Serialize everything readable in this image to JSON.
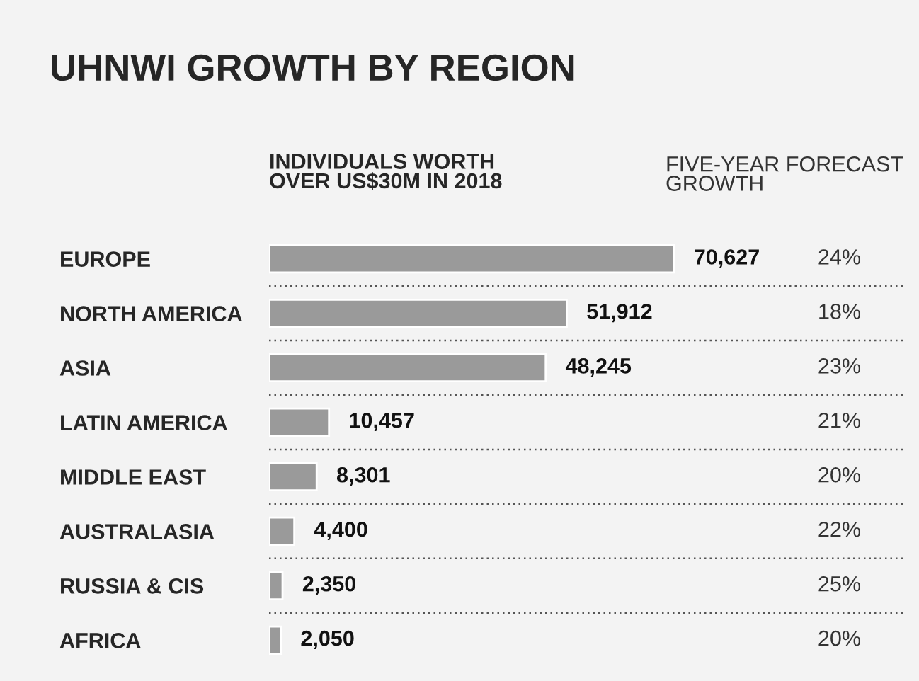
{
  "chart_data": {
    "type": "bar",
    "orientation": "horizontal",
    "title": "UHNWI GROWTH BY REGION",
    "xlabel": "INDIVIDUALS WORTH\nOVER US$30M IN 2018",
    "categories": [
      "EUROPE",
      "NORTH AMERICA",
      "ASIA",
      "LATIN AMERICA",
      "MIDDLE EAST",
      "AUSTRALASIA",
      "RUSSIA & CIS",
      "AFRICA"
    ],
    "values": [
      70627,
      51912,
      48245,
      10457,
      8301,
      4400,
      2350,
      2050
    ],
    "value_labels": [
      "70,627",
      "51,912",
      "48,245",
      "10,457",
      "8,301",
      "4,400",
      "2,350",
      "2,050"
    ],
    "color": "#9a9a9a",
    "grid": "y",
    "annotations": [
      "FIVE-YEAR FORECAST\nGROWTH",
      "24%",
      "18%",
      "23%",
      "21%",
      "20%",
      "22%",
      "25%",
      "20%"
    ]
  }
}
